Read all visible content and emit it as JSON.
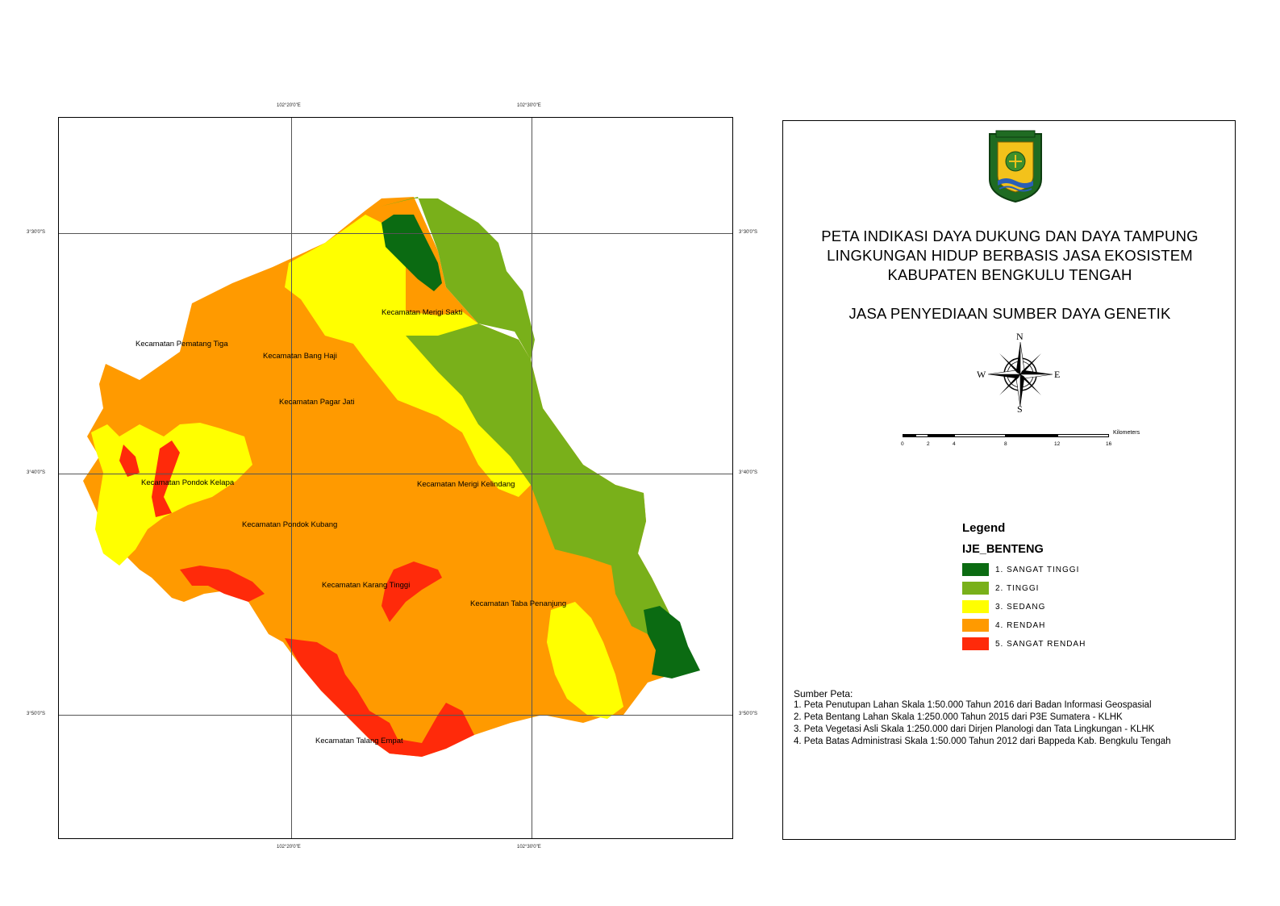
{
  "map": {
    "grid_labels": {
      "top_left": "102°20'0\"E",
      "top_right": "102°30'0\"E",
      "bottom_left": "102°20'0\"E",
      "bottom_right": "102°30'0\"E",
      "left_top": "3°30'0\"S",
      "left_mid": "3°40'0\"S",
      "left_bottom": "3°50'0\"S",
      "right_top": "3°30'0\"S",
      "right_mid": "3°40'0\"S",
      "right_bottom": "3°50'0\"S"
    },
    "districts": {
      "merigi_sakti": "Kecamatan Merigi Sakti",
      "pematang_tiga": "Kecamatan Pematang Tiga",
      "bang_haji": "Kecamatan Bang Haji",
      "pagar_jati": "Kecamatan Pagar Jati",
      "pondok_kelapa": "Kecamatan Pondok  Kelapa",
      "merigi_kelindang": "Kecamatan Merigi Kelindang",
      "pondok_kubang": "Kecamatan Pondok Kubang",
      "karang_tinggi": "Kecamatan Karang Tinggi",
      "taba_penanjung": "Kecamatan Taba Penanjung",
      "talang_empat": "Kecamatan Talang Empat"
    },
    "class_colors": {
      "sangat_tinggi": "#0b6b12",
      "tinggi": "#79b01a",
      "sedang": "#ffff00",
      "rendah": "#ff9a00",
      "sangat_rendah": "#ff2a0a"
    }
  },
  "panel": {
    "logo_icon": "bengkulu-tengah-coat-of-arms",
    "title_lines": [
      "PETA INDIKASI DAYA DUKUNG DAN DAYA TAMPUNG",
      "LINGKUNGAN HIDUP BERBASIS JASA EKOSISTEM",
      "KABUPATEN BENGKULU TENGAH"
    ],
    "subtitle": "JASA PENYEDIAAN SUMBER DAYA GENETIK",
    "compass": {
      "n": "N",
      "s": "S",
      "e": "E",
      "w": "W"
    },
    "scale": {
      "ticks": [
        "0",
        "2",
        "4",
        "8",
        "12",
        "16"
      ],
      "unit": "Kilometers"
    },
    "legend": {
      "heading": "Legend",
      "layer": "IJE_BENTENG",
      "items": [
        {
          "label": "1. SANGAT TINGGI",
          "color": "#0b6b12"
        },
        {
          "label": "2. TINGGI",
          "color": "#79b01a"
        },
        {
          "label": "3. SEDANG",
          "color": "#ffff00"
        },
        {
          "label": "4. RENDAH",
          "color": "#ff9a00"
        },
        {
          "label": "5. SANGAT RENDAH",
          "color": "#ff2a0a"
        }
      ]
    },
    "sources": {
      "heading": "Sumber Peta:",
      "lines": [
        "1. Peta Penutupan Lahan Skala 1:50.000 Tahun 2016 dari Badan Informasi Geospasial",
        "2. Peta Bentang Lahan Skala 1:250.000 Tahun 2015 dari  P3E Sumatera - KLHK",
        "3. Peta Vegetasi Asli Skala 1:250.000 dari Dirjen Planologi dan Tata Lingkungan - KLHK",
        "4. Peta Batas Administrasi Skala 1:50.000 Tahun 2012 dari Bappeda Kab. Bengkulu Tengah"
      ]
    }
  }
}
